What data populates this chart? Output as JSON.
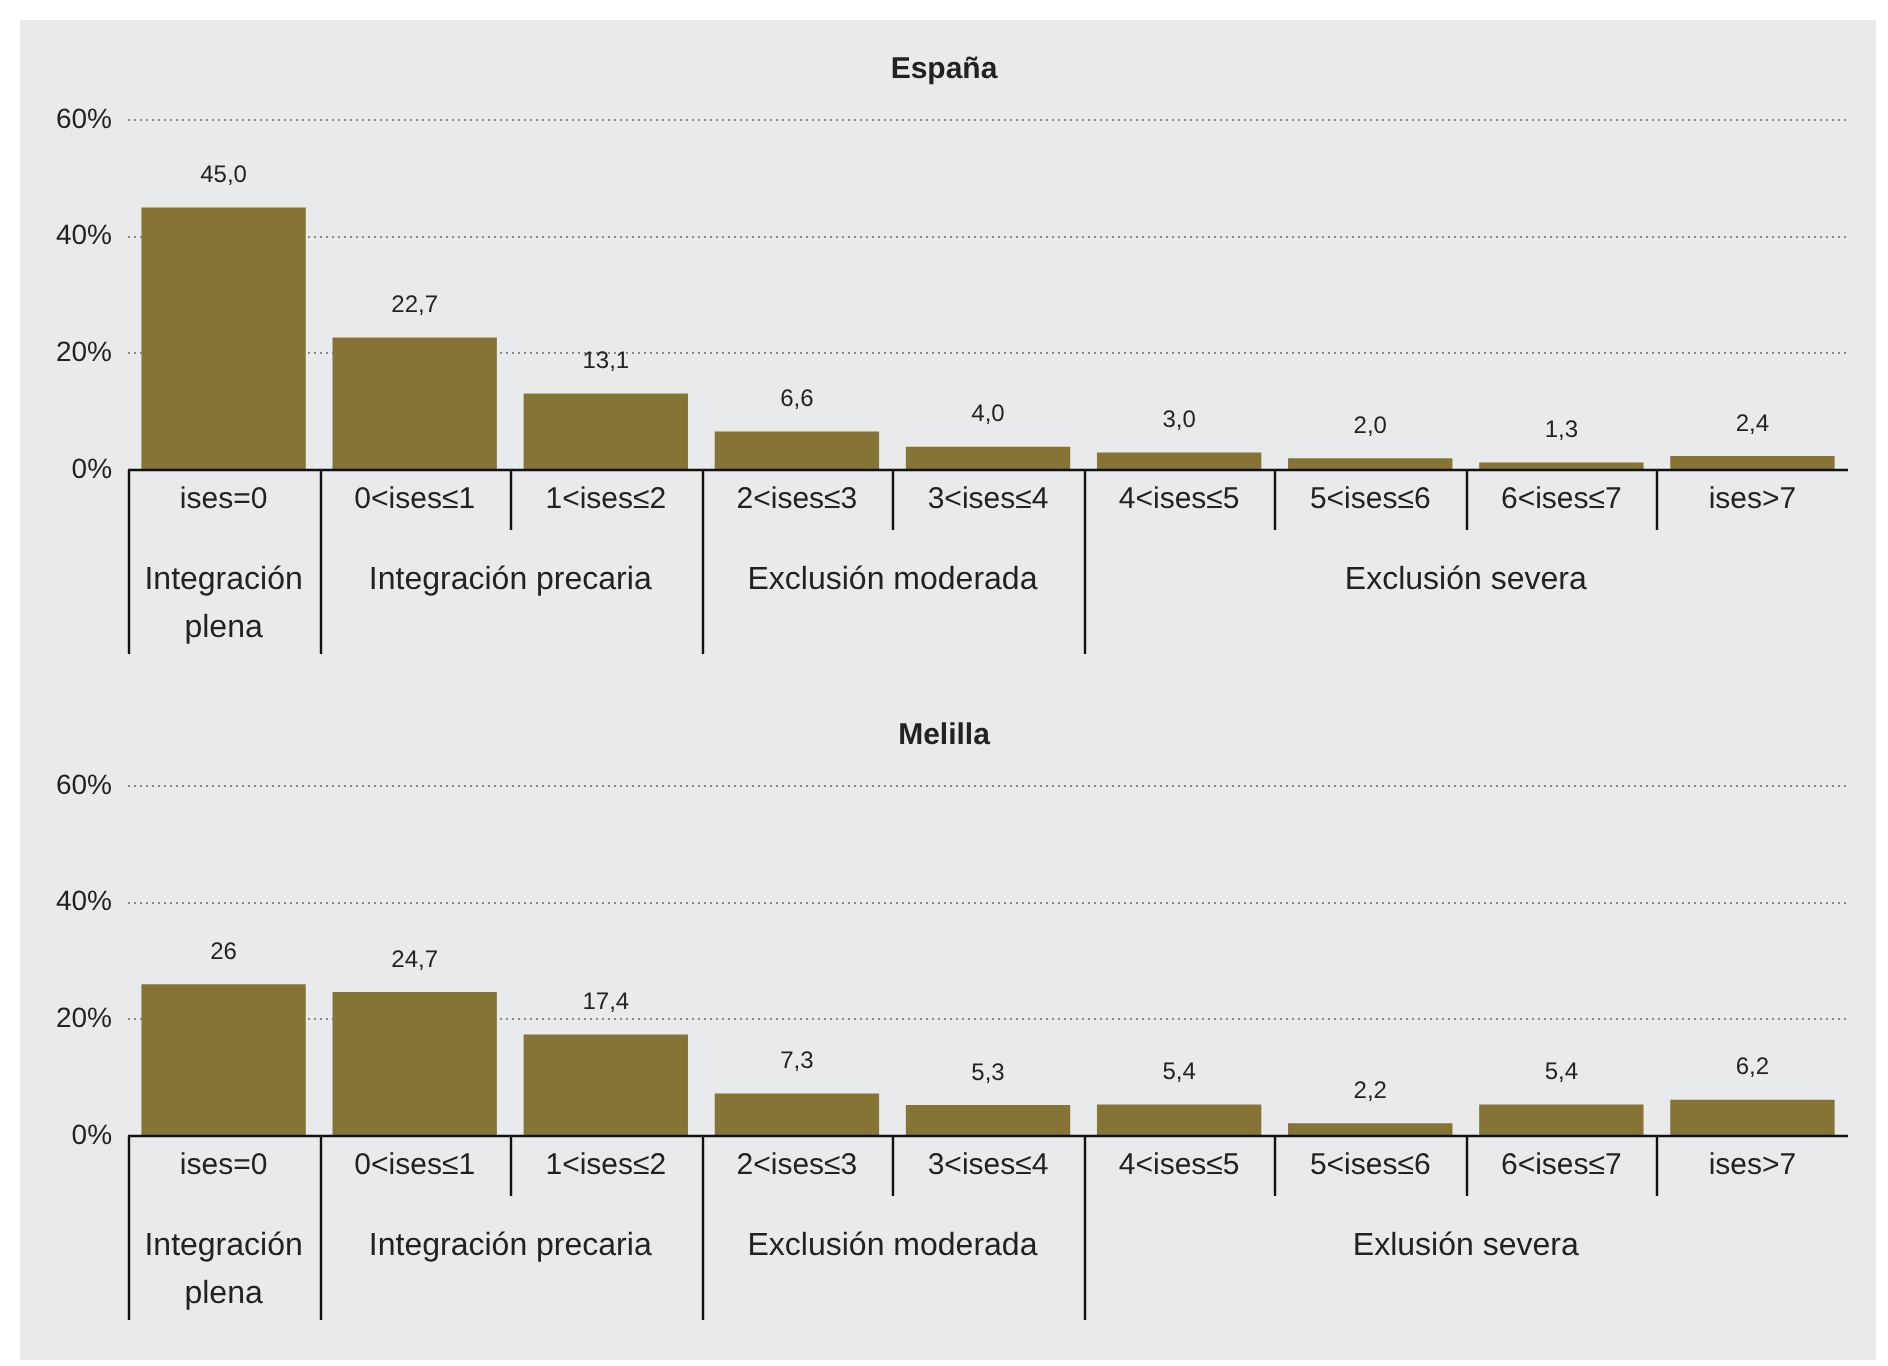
{
  "chart_data": [
    {
      "type": "bar",
      "title": "España",
      "categories": [
        "ises=0",
        "0<ises≤1",
        "1<ises≤2",
        "2<ises≤3",
        "3<ises≤4",
        "4<ises≤5",
        "5<ises≤6",
        "6<ises≤7",
        "ises>7"
      ],
      "values": [
        45.0,
        22.7,
        13.1,
        6.6,
        4.0,
        3.0,
        2.0,
        1.3,
        2.4
      ],
      "value_labels": [
        "45,0",
        "22,7",
        "13,1",
        "6,6",
        "4,0",
        "3,0",
        "2,0",
        "1,3",
        "2,4"
      ],
      "color": "#867436",
      "ylim": [
        0,
        60
      ],
      "yticks": [
        {
          "value": 0,
          "label": "0%"
        },
        {
          "value": 20,
          "label": "20%"
        },
        {
          "value": 40,
          "label": "40%"
        },
        {
          "value": 60,
          "label": "60%"
        }
      ],
      "grid": "y",
      "annotations": [
        "Integración plena",
        "Integración precaria",
        "Exclusión moderada",
        "Exclusión severa"
      ]
    },
    {
      "type": "bar",
      "title": "Melilla",
      "categories": [
        "ises=0",
        "0<ises≤1",
        "1<ises≤2",
        "2<ises≤3",
        "3<ises≤4",
        "4<ises≤5",
        "5<ises≤6",
        "6<ises≤7",
        "ises>7"
      ],
      "values": [
        26,
        24.7,
        17.4,
        7.3,
        5.3,
        5.4,
        2.2,
        5.4,
        6.2
      ],
      "value_labels": [
        "26",
        "24,7",
        "17,4",
        "7,3",
        "5,3",
        "5,4",
        "2,2",
        "5,4",
        "6,2"
      ],
      "color": "#867436",
      "ylim": [
        0,
        60
      ],
      "yticks": [
        {
          "value": 0,
          "label": "0%"
        },
        {
          "value": 20,
          "label": "20%"
        },
        {
          "value": 40,
          "label": "40%"
        },
        {
          "value": 60,
          "label": "60%"
        }
      ],
      "grid": "y",
      "annotations": [
        "Integración plena",
        "Integración precaria",
        "Exclusión moderada",
        "Exlusión severa"
      ]
    }
  ]
}
